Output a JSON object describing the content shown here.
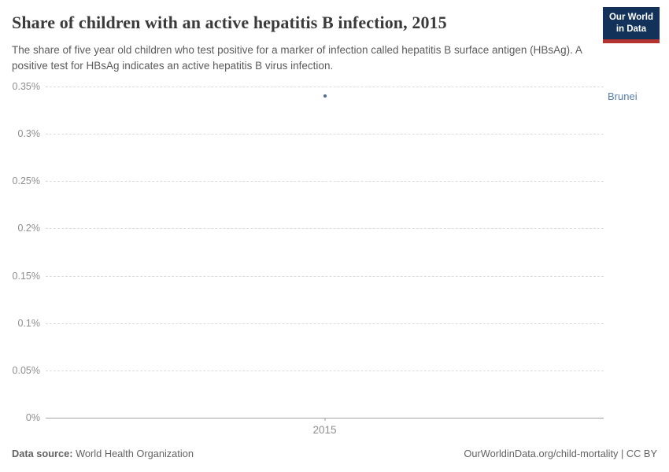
{
  "header": {
    "title": "Share of children with an active hepatitis B infection, 2015",
    "subtitle": "The share of five year old children who test positive for a marker of infection called hepatitis B surface antigen (HBsAg). A positive test for HBsAg indicates an active hepatitis B virus infection."
  },
  "logo": {
    "line1": "Our World",
    "line2": "in Data",
    "background_color": "#12325a",
    "underline_color": "#b5332e"
  },
  "chart_data": {
    "type": "scatter",
    "title": "Share of children with an active hepatitis B infection, 2015",
    "x": [
      2015
    ],
    "series": [
      {
        "name": "Brunei",
        "values": [
          0.34
        ],
        "color": "#4c6a9c",
        "label_color": "#577cae"
      }
    ],
    "xlabel": "",
    "ylabel": "",
    "unit": "%",
    "ylim": [
      0,
      0.35
    ],
    "yticks": [
      {
        "value": 0,
        "label": "0%"
      },
      {
        "value": 0.05,
        "label": "0.05%"
      },
      {
        "value": 0.1,
        "label": "0.1%"
      },
      {
        "value": 0.15,
        "label": "0.15%"
      },
      {
        "value": 0.2,
        "label": "0.2%"
      },
      {
        "value": 0.25,
        "label": "0.25%"
      },
      {
        "value": 0.3,
        "label": "0.3%"
      },
      {
        "value": 0.35,
        "label": "0.35%"
      }
    ],
    "x_tick_labels": [
      "2015"
    ],
    "grid": "horizontal-dashed",
    "legend_position": "right-of-point-row"
  },
  "footer": {
    "datasource_label": "Data source:",
    "datasource_value": " World Health Organization",
    "credit": "OurWorldinData.org/child-mortality | CC BY"
  }
}
